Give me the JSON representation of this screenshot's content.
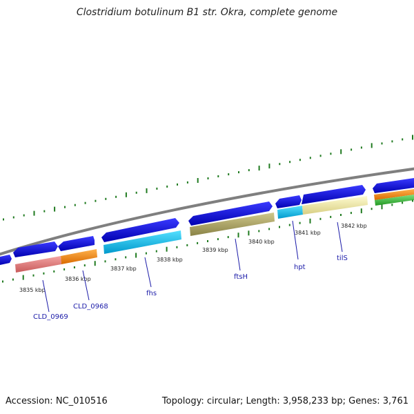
{
  "title": "Clostridium botulinum B1 str. Okra, complete genome",
  "accession": "Accession: NC_010516",
  "topology": "Topology: circular; Length: 3,958,233 bp; Genes: 3,761",
  "colors": {
    "backbone": "#7f7f7f",
    "cds": "#1414e6",
    "gc_tick": "#1f7a1f",
    "label": "#1a1aa8"
  },
  "kbp_ticks": [
    "3835 kbp",
    "3836 kbp",
    "3837 kbp",
    "3838 kbp",
    "3839 kbp",
    "3840 kbp",
    "3841 kbp",
    "3842 kbp"
  ],
  "gene_labels": [
    "CLD_0969",
    "CLD_0968",
    "fhs",
    "ftsH",
    "hpt",
    "tilS"
  ]
}
